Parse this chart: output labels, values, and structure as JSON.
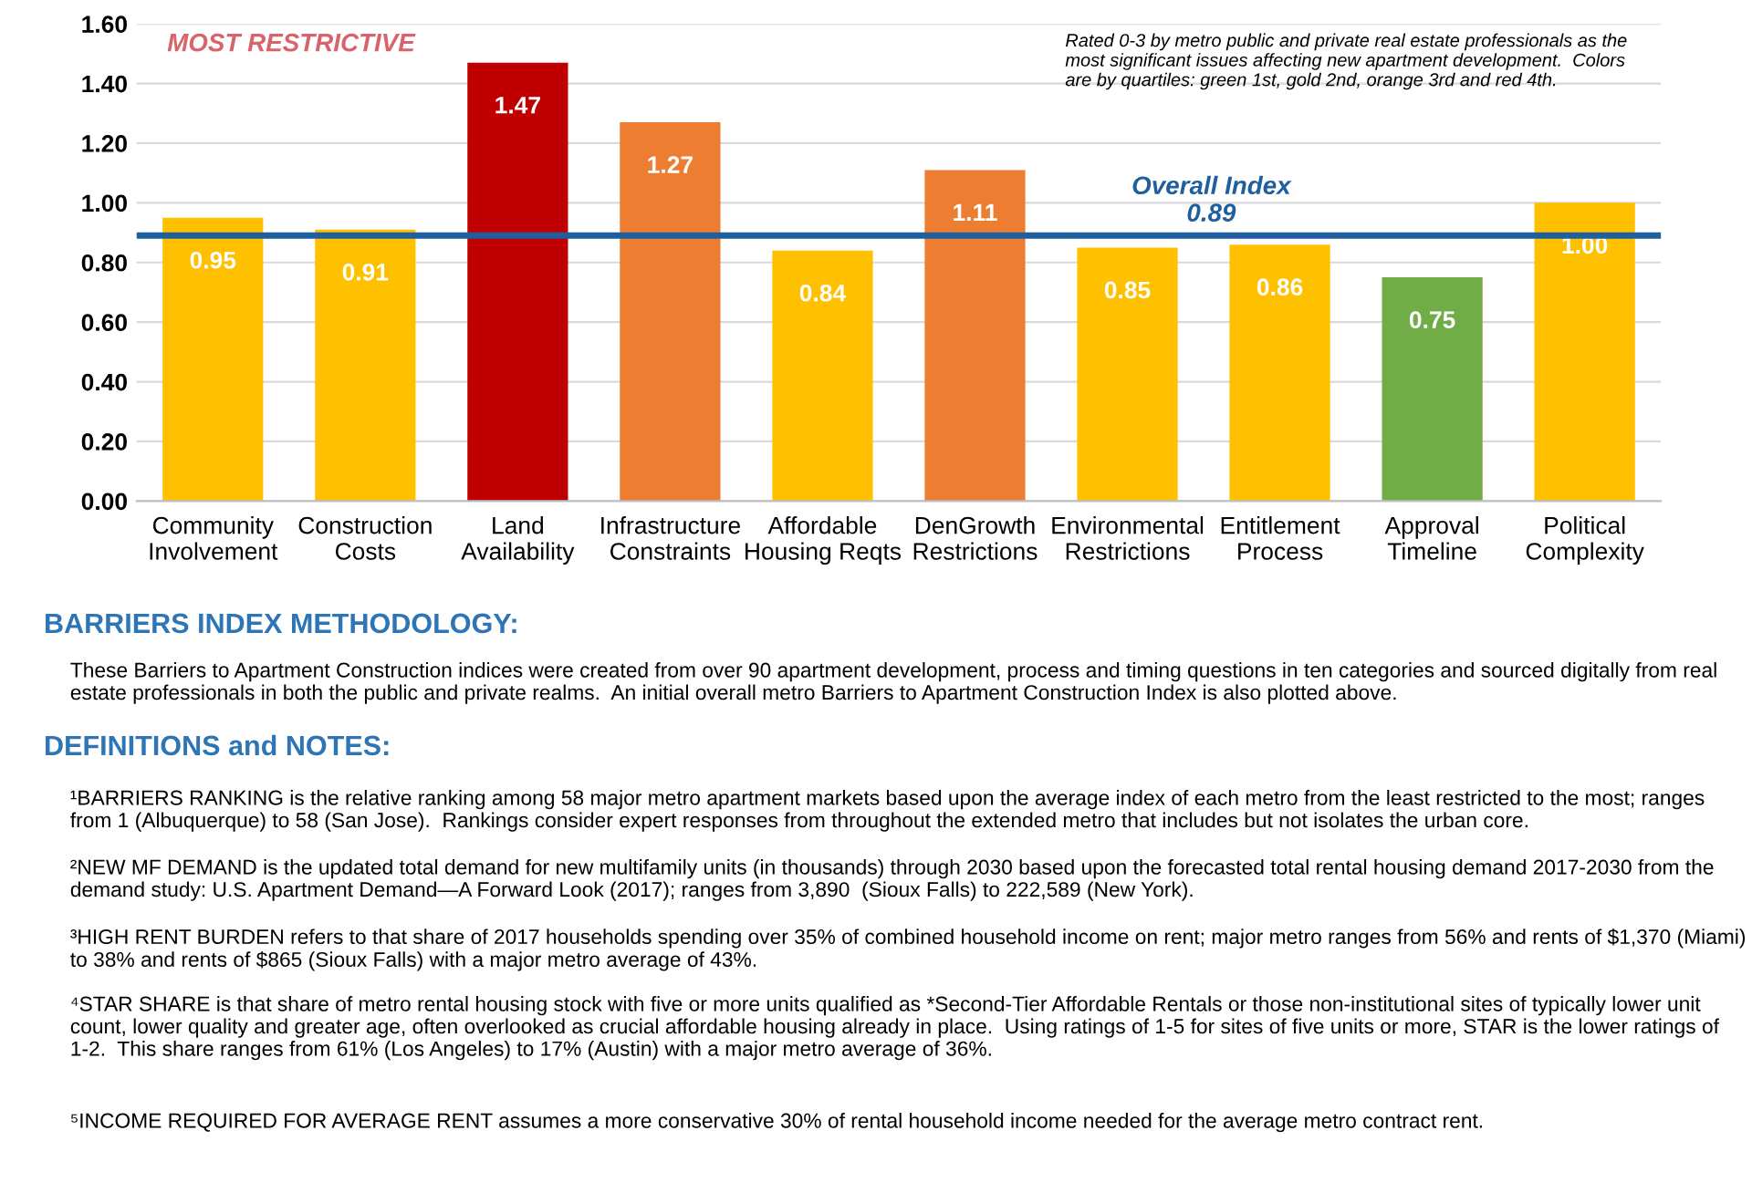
{
  "chart_data": {
    "type": "bar",
    "categories": [
      "Community\nInvolvement",
      "Construction\nCosts",
      "Land\nAvailability",
      "Infrastructure\nConstraints",
      "Affordable\nHousing Reqts",
      "DenGrowth\nRestrictions",
      "Environmental\nRestrictions",
      "Entitlement\nProcess",
      "Approval\nTimeline",
      "Political\nComplexity"
    ],
    "values": [
      0.95,
      0.91,
      1.47,
      1.27,
      0.84,
      1.11,
      0.85,
      0.86,
      0.75,
      1.0
    ],
    "value_labels": [
      "0.95",
      "0.91",
      "1.47",
      "1.27",
      "0.84",
      "1.11",
      "0.85",
      "0.86",
      "0.75",
      "1.00"
    ],
    "colors": [
      "#ffc000",
      "#ffc000",
      "#c00000",
      "#ed7d31",
      "#ffc000",
      "#ed7d31",
      "#ffc000",
      "#ffc000",
      "#70ad47",
      "#ffc000"
    ],
    "ylim": [
      0,
      1.6
    ],
    "yticks": [
      {
        "value": 0,
        "label": "0.00"
      },
      {
        "value": 0.2,
        "label": "0.20"
      },
      {
        "value": 0.4,
        "label": "0.40"
      },
      {
        "value": 0.6,
        "label": "0.60"
      },
      {
        "value": 0.8,
        "label": "0.80"
      },
      {
        "value": 1.0,
        "label": "1.00"
      },
      {
        "value": 1.2,
        "label": "1.20"
      },
      {
        "value": 1.4,
        "label": "1.40"
      },
      {
        "value": 1.6,
        "label": "1.60"
      }
    ],
    "grid": "y",
    "ref_lines": [
      {
        "axis": "y",
        "value": 0.89,
        "label": "Overall Index\n0.89",
        "color": "#1f5f9e"
      }
    ],
    "annotations": [
      "MOST RESTRICTIVE",
      "Rated 0-3 by metro public and private real estate professionals as the\nmost significant issues affecting new apartment development.  Colors\nare by quartiles: green 1st, gold 2nd, orange 3rd and red 4th.",
      "BARRIERS INDEX METHODOLOGY:",
      "These Barriers to Apartment Construction indices were created from over 90 apartment development, process and timing questions in ten categories and sourced digitally from real estate professionals in both the public and private realms.  An initial overall metro Barriers to Apartment Construction Index is also plotted above.",
      "DEFINITIONS and NOTES:",
      "¹BARRIERS RANKING is the relative ranking among 58 major metro apartment markets based upon the average index of each metro from the least restricted to the most; ranges from 1 (Albuquerque) to 58 (San Jose).  Rankings consider expert responses from throughout the extended metro that includes but not isolates the urban core.",
      "²NEW MF DEMAND is the updated total demand for new multifamily units (in thousands) through 2030 based upon the forecasted total rental housing demand 2017-2030 from the demand study: U.S. Apartment Demand—A Forward Look (2017); ranges from 3,890  (Sioux Falls) to 222,589 (New York).",
      "³HIGH RENT BURDEN refers to that share of 2017 households spending over 35% of combined household income on rent; major metro ranges from 56% and rents of $1,370 (Miami) to 38% and rents of $865 (Sioux Falls) with a major metro average of 43%.",
      "⁴STAR SHARE is that share of metro rental housing stock with five or more units qualified as *Second-Tier Affordable Rentals or those non-institutional sites of typically lower unit count, lower quality and greater age, often overlooked as crucial affordable housing already in place.  Using ratings of 1-5 for sites of five units or more, STAR is the lower ratings of 1-2.  This share ranges from 61% (Los Angeles) to 17% (Austin) with a major metro average of 36%.",
      "⁵INCOME REQUIRED FOR AVERAGE RENT assumes a more conservative 30% of rental household income needed for the average metro contract rent."
    ]
  }
}
